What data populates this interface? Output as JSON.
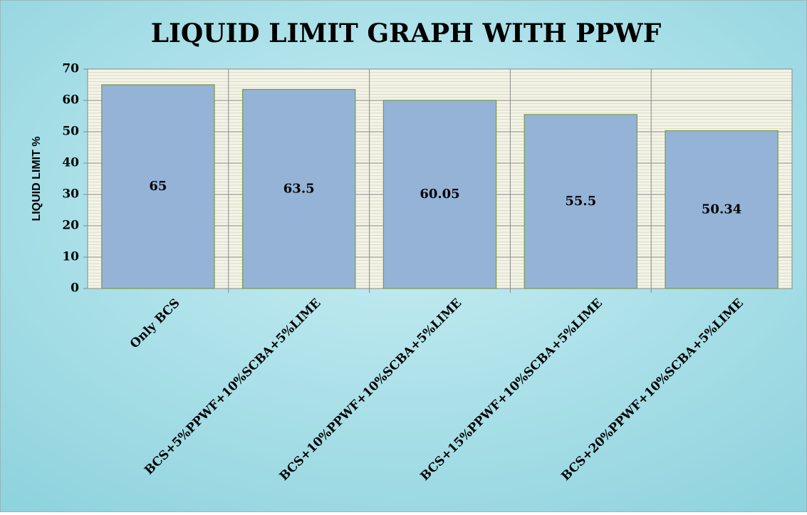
{
  "chart_data": {
    "type": "bar",
    "title": "LIQUID LIMIT GRAPH WITH PPWF",
    "y_label": "LIQUID LIMIT %",
    "categories": [
      "Only BCS",
      "BCS+5%PPWF+10%SCBA+5%LIME",
      "BCS+10%PPWF+10%SCBA+5%LIME",
      "BCS+15%PPWF+10%SCBA+5%LIME",
      "BCS+20%PPWF+10%SCBA+5%LIME"
    ],
    "values": [
      65,
      63.5,
      60.05,
      55.5,
      50.34
    ],
    "color": "#95b3d7",
    "ylim": [
      0,
      70
    ],
    "yticks": [
      0,
      10,
      20,
      30,
      40,
      50,
      60,
      70
    ],
    "grid": true
  }
}
